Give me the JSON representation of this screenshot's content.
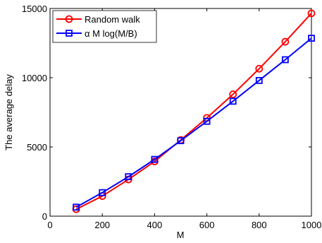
{
  "chart_data": {
    "type": "line",
    "title": "",
    "xlabel": "M",
    "ylabel": "The average delay",
    "xlim": [
      0,
      1000
    ],
    "ylim": [
      0,
      15000
    ],
    "xticks": [
      0,
      200,
      400,
      600,
      800,
      1000
    ],
    "yticks": [
      0,
      5000,
      10000,
      15000
    ],
    "xtick_labels": [
      "0",
      "200",
      "400",
      "600",
      "800",
      "1000"
    ],
    "ytick_labels": [
      "0",
      "5000",
      "10000",
      "15000"
    ],
    "grid": false,
    "legend_position": "top-left",
    "x": [
      100,
      200,
      300,
      400,
      500,
      600,
      700,
      800,
      900,
      1000
    ],
    "series": [
      {
        "name": "Random walk",
        "color": "#ff0000",
        "marker": "circle",
        "values": [
          500,
          1450,
          2650,
          3950,
          5500,
          7100,
          8800,
          10650,
          12600,
          14650
        ]
      },
      {
        "name": "α M log(M/B)",
        "color": "#0000ff",
        "marker": "square",
        "values": [
          650,
          1700,
          2850,
          4100,
          5450,
          6850,
          8300,
          9800,
          11300,
          12850
        ]
      }
    ]
  }
}
